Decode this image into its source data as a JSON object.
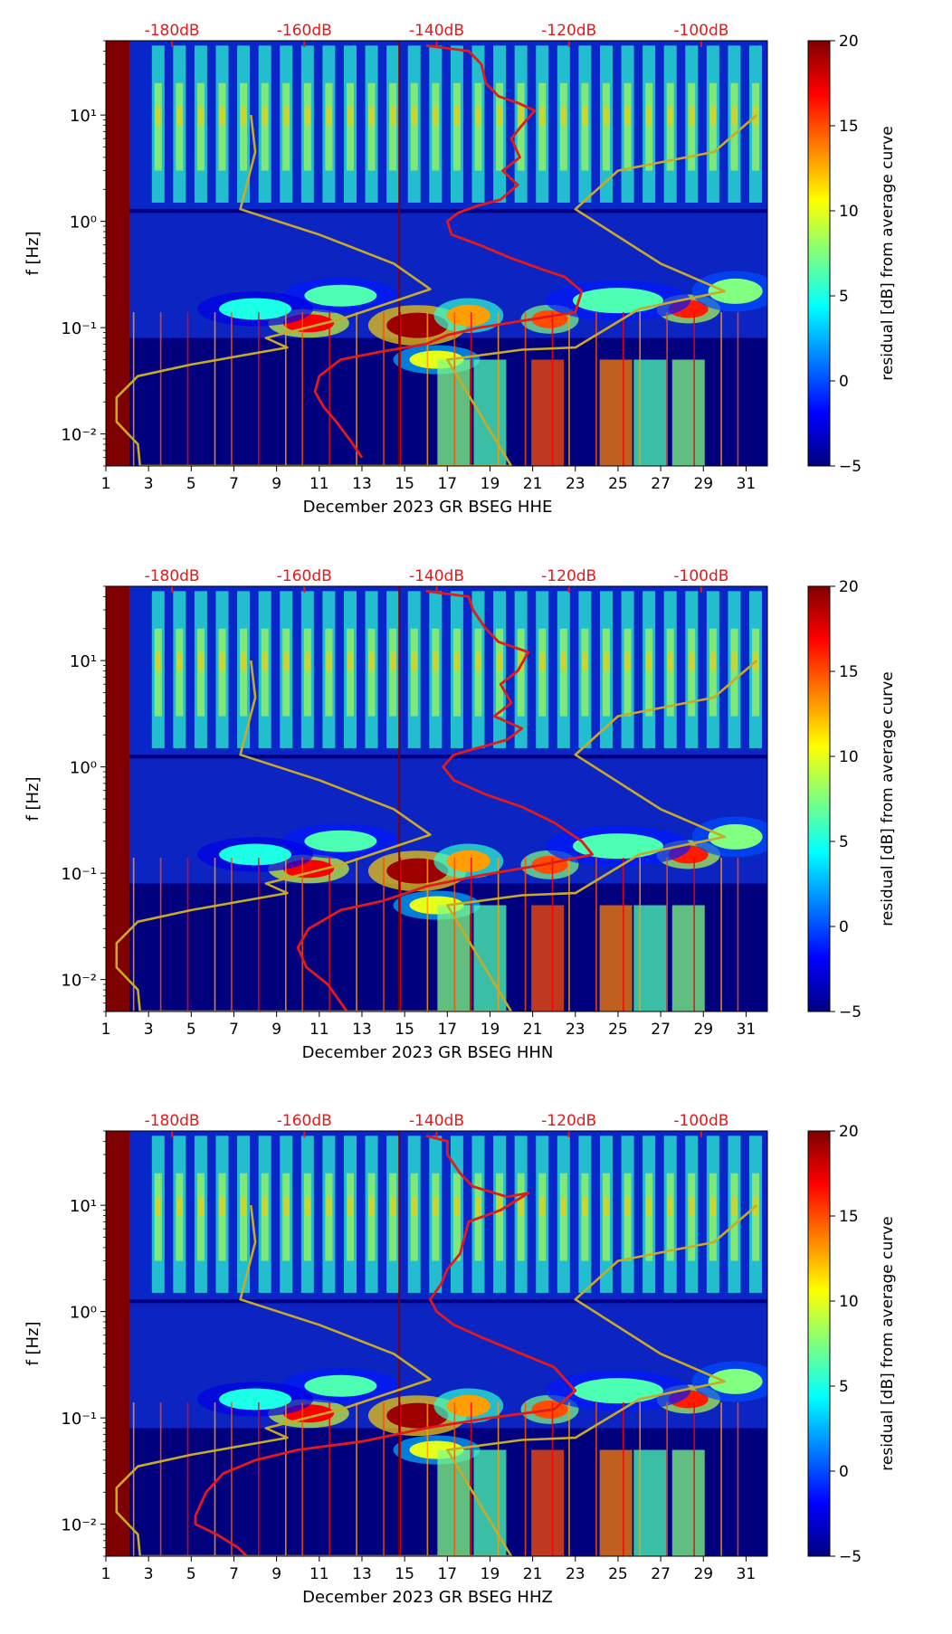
{
  "colorbar": {
    "label": "residual [dB] from average curve",
    "ticks": [
      "20",
      "15",
      "10",
      "5",
      "0",
      "−5"
    ],
    "min": -5,
    "max": 20,
    "colors": [
      "#00007f",
      "#0000ff",
      "#007fff",
      "#00ffff",
      "#7fff7f",
      "#ffff00",
      "#ff7f00",
      "#ff0000",
      "#7f0000"
    ]
  },
  "colors": {
    "noise_curve": "#e31a1c",
    "model_curve": "#c8aa28",
    "top_db_labels": "#e31a1c",
    "background": "#00007f"
  },
  "chart_data": [
    {
      "type": "heatmap",
      "title": "",
      "xlabel": "December 2023 GR BSEG  HHE",
      "ylabel": "f [Hz]",
      "x_ticks": [
        "1",
        "3",
        "5",
        "7",
        "9",
        "11",
        "13",
        "15",
        "17",
        "19",
        "21",
        "23",
        "25",
        "27",
        "29",
        "31"
      ],
      "y_ticks": [
        "10⁻²",
        "10⁻¹",
        "10⁰",
        "10¹"
      ],
      "top_axis_labels": [
        "-180dB",
        "-160dB",
        "-140dB",
        "-120dB",
        "-100dB"
      ],
      "xlim": [
        1,
        32
      ],
      "ylim_hz": [
        0.005,
        50
      ],
      "series": [
        {
          "name": "PSD curve (red, dB)",
          "points": [
            [
              16.0,
              45
            ],
            [
              18.0,
              40
            ],
            [
              18.6,
              30
            ],
            [
              18.8,
              20
            ],
            [
              19.4,
              15
            ],
            [
              20.3,
              13
            ],
            [
              21.1,
              11
            ],
            [
              20.5,
              8
            ],
            [
              20.0,
              6
            ],
            [
              20.4,
              4
            ],
            [
              19.6,
              3
            ],
            [
              20.3,
              2.2
            ],
            [
              19.5,
              1.6
            ],
            [
              18.4,
              1.4
            ],
            [
              17.5,
              1.2
            ],
            [
              17.0,
              1.0
            ],
            [
              17.2,
              0.75
            ],
            [
              18.5,
              0.6
            ],
            [
              20.0,
              0.45
            ],
            [
              21.5,
              0.35
            ],
            [
              22.5,
              0.3
            ],
            [
              23.3,
              0.22
            ],
            [
              23.0,
              0.14
            ],
            [
              21.0,
              0.12
            ],
            [
              18.5,
              0.1
            ],
            [
              17.0,
              0.085
            ],
            [
              16.0,
              0.07
            ],
            [
              14.0,
              0.06
            ],
            [
              12.0,
              0.05
            ],
            [
              11.0,
              0.035
            ],
            [
              10.8,
              0.025
            ],
            [
              11.2,
              0.018
            ],
            [
              11.8,
              0.013
            ],
            [
              12.4,
              0.009
            ],
            [
              13.0,
              0.006
            ]
          ]
        },
        {
          "name": "model curve (gold, dB)",
          "points": [
            [
              7.8,
              10
            ],
            [
              8.0,
              4.5
            ],
            [
              7.3,
              1.3
            ],
            [
              11.0,
              0.75
            ],
            [
              14.5,
              0.4
            ],
            [
              16.2,
              0.23
            ],
            [
              12.0,
              0.12
            ],
            [
              8.5,
              0.08
            ],
            [
              9.5,
              0.065
            ],
            [
              5.0,
              0.045
            ],
            [
              2.5,
              0.035
            ],
            [
              1.5,
              0.022
            ],
            [
              1.5,
              0.013
            ],
            [
              2.5,
              0.008
            ],
            [
              2.6,
              0.005
            ],
            [
              20.0,
              0.005
            ],
            [
              17.0,
              0.05
            ],
            [
              20.5,
              0.062
            ],
            [
              23.0,
              0.065
            ],
            [
              26.0,
              0.15
            ],
            [
              30.0,
              0.22
            ],
            [
              27.0,
              0.4
            ],
            [
              23.0,
              1.3
            ],
            [
              25.0,
              3.0
            ],
            [
              29.5,
              4.5
            ],
            [
              31.5,
              10
            ]
          ]
        }
      ]
    },
    {
      "type": "heatmap",
      "title": "",
      "xlabel": "December 2023 GR BSEG  HHN",
      "ylabel": "f [Hz]",
      "x_ticks": [
        "1",
        "3",
        "5",
        "7",
        "9",
        "11",
        "13",
        "15",
        "17",
        "19",
        "21",
        "23",
        "25",
        "27",
        "29",
        "31"
      ],
      "y_ticks": [
        "10⁻²",
        "10⁻¹",
        "10⁰",
        "10¹"
      ],
      "top_axis_labels": [
        "-180dB",
        "-160dB",
        "-140dB",
        "-120dB",
        "-100dB"
      ],
      "xlim": [
        1,
        32
      ],
      "ylim_hz": [
        0.005,
        50
      ],
      "series": [
        {
          "name": "PSD curve (red, dB)",
          "points": [
            [
              16.0,
              45
            ],
            [
              18.0,
              40
            ],
            [
              18.2,
              30
            ],
            [
              18.8,
              20
            ],
            [
              19.4,
              15
            ],
            [
              20.8,
              12
            ],
            [
              20.3,
              8
            ],
            [
              19.5,
              6
            ],
            [
              20.0,
              4
            ],
            [
              19.2,
              3
            ],
            [
              20.5,
              2.3
            ],
            [
              19.8,
              1.8
            ],
            [
              18.4,
              1.5
            ],
            [
              17.3,
              1.3
            ],
            [
              16.8,
              1.0
            ],
            [
              17.3,
              0.75
            ],
            [
              18.8,
              0.55
            ],
            [
              20.5,
              0.42
            ],
            [
              22.0,
              0.3
            ],
            [
              23.3,
              0.2
            ],
            [
              23.8,
              0.15
            ],
            [
              21.5,
              0.12
            ],
            [
              18.5,
              0.095
            ],
            [
              16.0,
              0.075
            ],
            [
              14.0,
              0.055
            ],
            [
              12.0,
              0.045
            ],
            [
              10.5,
              0.03
            ],
            [
              10.0,
              0.02
            ],
            [
              10.4,
              0.013
            ],
            [
              11.4,
              0.009
            ],
            [
              12.3,
              0.005
            ]
          ]
        },
        {
          "name": "model curve (gold, dB)",
          "points": [
            [
              7.8,
              10
            ],
            [
              8.0,
              4.5
            ],
            [
              7.3,
              1.3
            ],
            [
              11.0,
              0.75
            ],
            [
              14.5,
              0.4
            ],
            [
              16.2,
              0.23
            ],
            [
              12.0,
              0.12
            ],
            [
              8.5,
              0.08
            ],
            [
              9.5,
              0.065
            ],
            [
              5.0,
              0.045
            ],
            [
              2.5,
              0.035
            ],
            [
              1.5,
              0.022
            ],
            [
              1.5,
              0.013
            ],
            [
              2.5,
              0.008
            ],
            [
              2.6,
              0.005
            ],
            [
              20.0,
              0.005
            ],
            [
              17.0,
              0.05
            ],
            [
              20.5,
              0.062
            ],
            [
              23.0,
              0.065
            ],
            [
              26.0,
              0.15
            ],
            [
              30.0,
              0.22
            ],
            [
              27.0,
              0.4
            ],
            [
              23.0,
              1.3
            ],
            [
              25.0,
              3.0
            ],
            [
              29.5,
              4.5
            ],
            [
              31.5,
              10
            ]
          ]
        }
      ]
    },
    {
      "type": "heatmap",
      "title": "",
      "xlabel": "December 2023 GR BSEG  HHZ",
      "ylabel": "f [Hz]",
      "x_ticks": [
        "1",
        "3",
        "5",
        "7",
        "9",
        "11",
        "13",
        "15",
        "17",
        "19",
        "21",
        "23",
        "25",
        "27",
        "29",
        "31"
      ],
      "y_ticks": [
        "10⁻²",
        "10⁻¹",
        "10⁰",
        "10¹"
      ],
      "top_axis_labels": [
        "-180dB",
        "-160dB",
        "-140dB",
        "-120dB",
        "-100dB"
      ],
      "xlim": [
        1,
        32
      ],
      "ylim_hz": [
        0.005,
        50
      ],
      "series": [
        {
          "name": "PSD curve (red, dB)",
          "points": [
            [
              16.0,
              45
            ],
            [
              17.0,
              40
            ],
            [
              17.0,
              30
            ],
            [
              17.6,
              20
            ],
            [
              18.2,
              15
            ],
            [
              19.8,
              12
            ],
            [
              20.8,
              13
            ],
            [
              19.5,
              9
            ],
            [
              18.0,
              7
            ],
            [
              17.8,
              5
            ],
            [
              17.6,
              3.5
            ],
            [
              17.0,
              2.5
            ],
            [
              16.7,
              1.8
            ],
            [
              16.2,
              1.3
            ],
            [
              16.5,
              1.0
            ],
            [
              17.3,
              0.75
            ],
            [
              18.8,
              0.55
            ],
            [
              20.5,
              0.4
            ],
            [
              22.0,
              0.3
            ],
            [
              23.0,
              0.18
            ],
            [
              22.0,
              0.12
            ],
            [
              19.0,
              0.1
            ],
            [
              16.0,
              0.08
            ],
            [
              13.0,
              0.06
            ],
            [
              10.0,
              0.05
            ],
            [
              8.0,
              0.04
            ],
            [
              6.5,
              0.03
            ],
            [
              5.7,
              0.02
            ],
            [
              5.2,
              0.012
            ],
            [
              5.2,
              0.01
            ],
            [
              6.2,
              0.008
            ],
            [
              7.2,
              0.006
            ],
            [
              7.6,
              0.005
            ]
          ]
        },
        {
          "name": "model curve (gold, dB)",
          "points": [
            [
              7.8,
              10
            ],
            [
              8.0,
              4.5
            ],
            [
              7.3,
              1.3
            ],
            [
              11.0,
              0.75
            ],
            [
              14.5,
              0.4
            ],
            [
              16.2,
              0.23
            ],
            [
              12.0,
              0.12
            ],
            [
              8.5,
              0.08
            ],
            [
              9.5,
              0.065
            ],
            [
              5.0,
              0.045
            ],
            [
              2.5,
              0.035
            ],
            [
              1.5,
              0.022
            ],
            [
              1.5,
              0.013
            ],
            [
              2.5,
              0.008
            ],
            [
              2.6,
              0.005
            ],
            [
              20.0,
              0.005
            ],
            [
              17.0,
              0.05
            ],
            [
              20.5,
              0.062
            ],
            [
              23.0,
              0.065
            ],
            [
              26.0,
              0.15
            ],
            [
              30.0,
              0.22
            ],
            [
              27.0,
              0.4
            ],
            [
              23.0,
              1.3
            ],
            [
              25.0,
              3.0
            ],
            [
              29.5,
              4.5
            ],
            [
              31.5,
              10
            ]
          ]
        }
      ]
    }
  ]
}
